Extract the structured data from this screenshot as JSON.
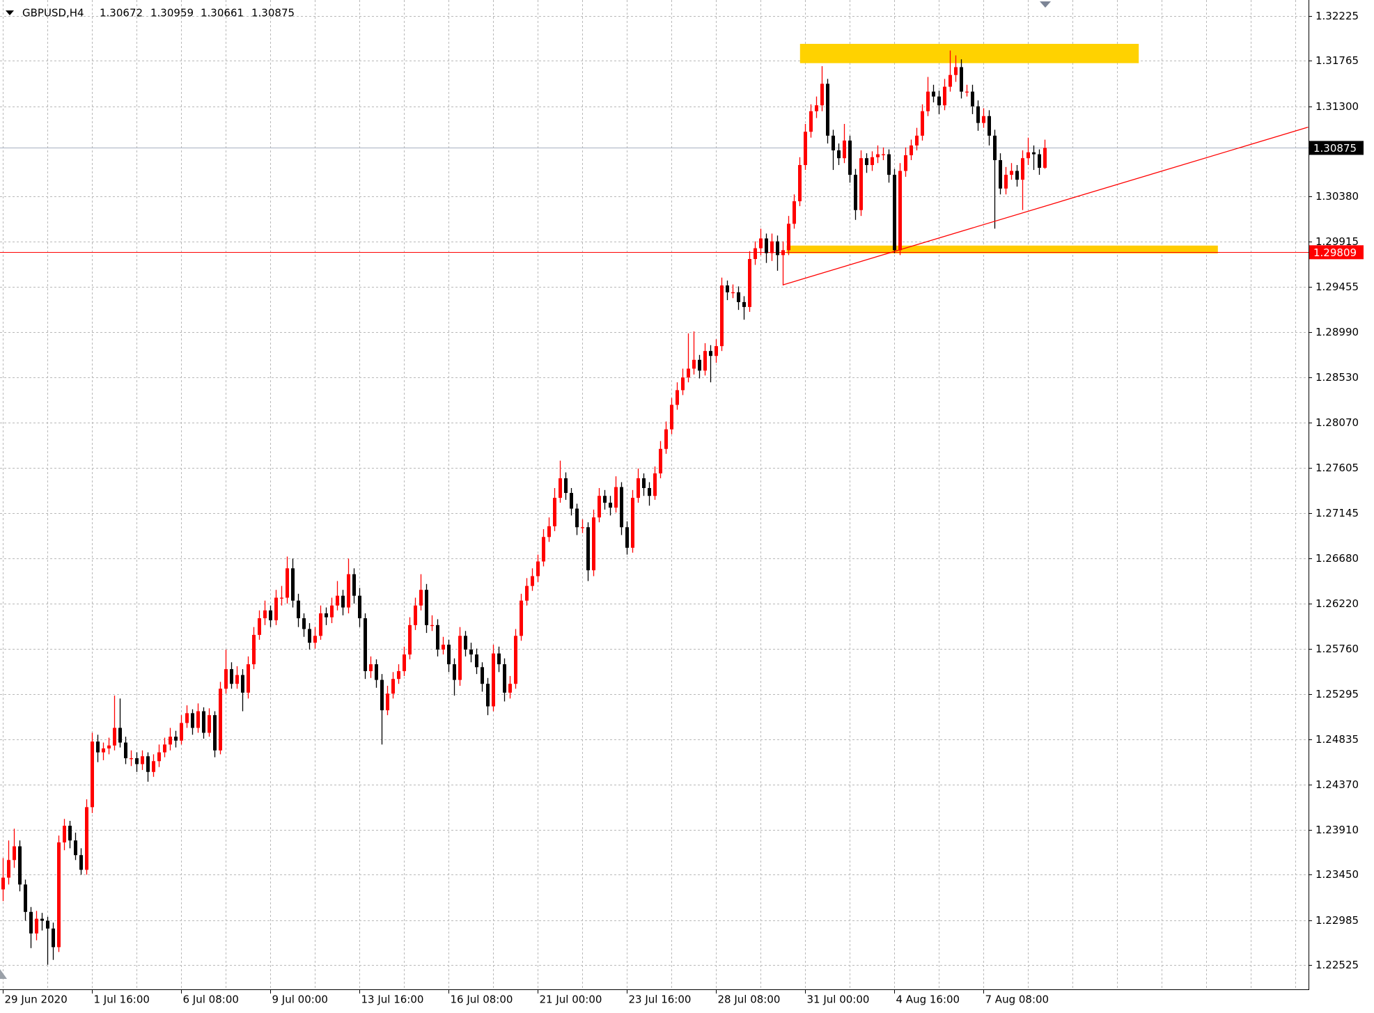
{
  "chart_data": {
    "type": "candlestick",
    "title": "GBPUSD,H4",
    "up_color": "#ff0000",
    "down_color": "#000000",
    "grid": true,
    "ylim": [
      1.22279,
      1.32386
    ],
    "yticks": [
      1.22525,
      1.22985,
      {
        "value": 1.2345,
        "label": "1.23450"
      },
      {
        "value": 1.2391,
        "label": "1.23910"
      },
      {
        "value": 1.2437,
        "label": "1.24370"
      },
      1.24835,
      1.25295,
      {
        "value": 1.2576,
        "label": "1.25760"
      },
      {
        "value": 1.2622,
        "label": "1.26220"
      },
      {
        "value": 1.2668,
        "label": "1.26680"
      },
      1.27145,
      1.27605,
      {
        "value": 1.2807,
        "label": "1.28070"
      },
      {
        "value": 1.2853,
        "label": "1.28530"
      },
      {
        "value": 1.2899,
        "label": "1.28990"
      },
      1.29455,
      1.29915,
      {
        "value": 1.3038,
        "label": "1.30380"
      },
      {
        "value": 1.313,
        "label": "1.31300"
      },
      1.31765,
      1.32225
    ],
    "xticks": [
      0,
      8,
      16,
      24,
      32,
      40,
      48,
      56,
      64,
      72,
      80,
      88,
      96,
      104,
      112,
      120,
      128,
      136,
      144,
      152,
      160,
      168,
      176,
      184,
      192,
      200,
      208,
      216,
      224,
      232
    ],
    "categories": [
      "29 Jun 2020",
      null,
      null,
      null,
      null,
      null,
      null,
      null,
      null,
      null,
      null,
      null,
      null,
      null,
      null,
      null,
      "1 Jul 16:00",
      null,
      null,
      null,
      null,
      null,
      null,
      null,
      null,
      null,
      null,
      null,
      null,
      null,
      null,
      null,
      "6 Jul 08:00",
      null,
      null,
      null,
      null,
      null,
      null,
      null,
      null,
      null,
      null,
      null,
      null,
      null,
      null,
      null,
      "9 Jul 00:00",
      null,
      null,
      null,
      null,
      null,
      null,
      null,
      null,
      null,
      null,
      null,
      null,
      null,
      null,
      null,
      "13 Jul 16:00",
      null,
      null,
      null,
      null,
      null,
      null,
      null,
      null,
      null,
      null,
      null,
      null,
      null,
      null,
      null,
      "16 Jul 08:00",
      null,
      null,
      null,
      null,
      null,
      null,
      null,
      null,
      null,
      null,
      null,
      null,
      null,
      null,
      null,
      "21 Jul 00:00",
      null,
      null,
      null,
      null,
      null,
      null,
      null,
      null,
      null,
      null,
      null,
      null,
      null,
      null,
      null,
      "23 Jul 16:00",
      null,
      null,
      null,
      null,
      null,
      null,
      null,
      null,
      null,
      null,
      null,
      null,
      null,
      null,
      null,
      "28 Jul 08:00",
      null,
      null,
      null,
      null,
      null,
      null,
      null,
      null,
      null,
      null,
      null,
      null,
      null,
      null,
      null,
      "31 Jul 00:00",
      null,
      null,
      null,
      null,
      null,
      null,
      null,
      null,
      null,
      null,
      null,
      null,
      null,
      null,
      null,
      "4 Aug 16:00",
      null,
      null,
      null,
      null,
      null,
      null,
      null,
      null,
      null,
      null,
      null,
      null,
      null,
      null,
      null,
      "7 Aug 08:00",
      null,
      null,
      null,
      null,
      null,
      null,
      null,
      null,
      null,
      null,
      null
    ],
    "candles": [
      [
        1.233,
        1.2362,
        1.2318,
        1.2342
      ],
      [
        1.2342,
        1.238,
        1.2335,
        1.236
      ],
      [
        1.236,
        1.2392,
        1.2352,
        1.2374
      ],
      [
        1.2374,
        1.238,
        1.2328,
        1.2335
      ],
      [
        1.2335,
        1.234,
        1.2298,
        1.2307
      ],
      [
        1.2307,
        1.2312,
        1.227,
        1.2285
      ],
      [
        1.2285,
        1.2308,
        1.2278,
        1.23
      ],
      [
        1.23,
        1.2306,
        1.2288,
        1.2298
      ],
      [
        1.2298,
        1.2302,
        1.2253,
        1.229
      ],
      [
        1.229,
        1.2296,
        1.2258,
        1.2271
      ],
      [
        1.2271,
        1.2385,
        1.2266,
        1.2378
      ],
      [
        1.2378,
        1.2402,
        1.237,
        1.2395
      ],
      [
        1.2395,
        1.24,
        1.2372,
        1.238
      ],
      [
        1.238,
        1.2388,
        1.236,
        1.2365
      ],
      [
        1.2365,
        1.2372,
        1.2345,
        1.235
      ],
      [
        1.235,
        1.2422,
        1.2345,
        1.2414
      ],
      [
        1.2414,
        1.249,
        1.2408,
        1.2481
      ],
      [
        1.2481,
        1.2488,
        1.246,
        1.247
      ],
      [
        1.247,
        1.248,
        1.2462,
        1.2474
      ],
      [
        1.2474,
        1.2485,
        1.2468,
        1.2477
      ],
      [
        1.2477,
        1.2528,
        1.2472,
        1.2495
      ],
      [
        1.2495,
        1.2525,
        1.2475,
        1.248
      ],
      [
        1.248,
        1.2486,
        1.2458,
        1.2464
      ],
      [
        1.2464,
        1.2472,
        1.2456,
        1.2464
      ],
      [
        1.2464,
        1.247,
        1.245,
        1.2458
      ],
      [
        1.2458,
        1.2472,
        1.2452,
        1.2466
      ],
      [
        1.2466,
        1.247,
        1.244,
        1.245
      ],
      [
        1.245,
        1.2468,
        1.2445,
        1.2461
      ],
      [
        1.2461,
        1.2478,
        1.2455,
        1.247
      ],
      [
        1.247,
        1.2485,
        1.2465,
        1.2478
      ],
      [
        1.2478,
        1.2495,
        1.2472,
        1.2486
      ],
      [
        1.2486,
        1.2492,
        1.2475,
        1.2482
      ],
      [
        1.2482,
        1.2508,
        1.2478,
        1.25
      ],
      [
        1.25,
        1.2518,
        1.2495,
        1.251
      ],
      [
        1.251,
        1.2514,
        1.2488,
        1.2495
      ],
      [
        1.2495,
        1.252,
        1.249,
        1.2512
      ],
      [
        1.2512,
        1.2516,
        1.2484,
        1.249
      ],
      [
        1.249,
        1.2515,
        1.2486,
        1.2508
      ],
      [
        1.2508,
        1.2512,
        1.2465,
        1.2472
      ],
      [
        1.2472,
        1.2542,
        1.2468,
        1.2535
      ],
      [
        1.2535,
        1.2575,
        1.253,
        1.2555
      ],
      [
        1.2555,
        1.2562,
        1.2535,
        1.254
      ],
      [
        1.254,
        1.2558,
        1.2535,
        1.2549
      ],
      [
        1.2549,
        1.2555,
        1.2512,
        1.2531
      ],
      [
        1.2531,
        1.2568,
        1.2525,
        1.256
      ],
      [
        1.256,
        1.2598,
        1.2555,
        1.259
      ],
      [
        1.259,
        1.2615,
        1.2585,
        1.2607
      ],
      [
        1.2607,
        1.2625,
        1.26,
        1.2615
      ],
      [
        1.2615,
        1.262,
        1.2598,
        1.2605
      ],
      [
        1.2605,
        1.2636,
        1.26,
        1.2628
      ],
      [
        1.2628,
        1.264,
        1.262,
        1.2628
      ],
      [
        1.2628,
        1.267,
        1.2622,
        1.2658
      ],
      [
        1.2658,
        1.2668,
        1.2618,
        1.2625
      ],
      [
        1.2625,
        1.2632,
        1.2598,
        1.2607
      ],
      [
        1.2607,
        1.2612,
        1.2588,
        1.2596
      ],
      [
        1.2596,
        1.2602,
        1.2575,
        1.2582
      ],
      [
        1.2582,
        1.2598,
        1.2576,
        1.2589
      ],
      [
        1.2589,
        1.262,
        1.2585,
        1.2612
      ],
      [
        1.2612,
        1.2618,
        1.26,
        1.2608
      ],
      [
        1.2608,
        1.2628,
        1.2602,
        1.262
      ],
      [
        1.262,
        1.2645,
        1.2615,
        1.263
      ],
      [
        1.263,
        1.2636,
        1.261,
        1.2618
      ],
      [
        1.2618,
        1.2668,
        1.2612,
        1.2652
      ],
      [
        1.2652,
        1.2658,
        1.2622,
        1.263
      ],
      [
        1.263,
        1.2638,
        1.2598,
        1.2607
      ],
      [
        1.2607,
        1.2612,
        1.2545,
        1.2553
      ],
      [
        1.2553,
        1.2568,
        1.2546,
        1.256
      ],
      [
        1.256,
        1.2565,
        1.2536,
        1.2544
      ],
      [
        1.2544,
        1.255,
        1.2478,
        1.2513
      ],
      [
        1.2513,
        1.2538,
        1.2508,
        1.253
      ],
      [
        1.253,
        1.2552,
        1.2525,
        1.2545
      ],
      [
        1.2545,
        1.256,
        1.254,
        1.2553
      ],
      [
        1.2553,
        1.2578,
        1.2548,
        1.257
      ],
      [
        1.257,
        1.2608,
        1.2565,
        1.26
      ],
      [
        1.26,
        1.2628,
        1.2595,
        1.262
      ],
      [
        1.262,
        1.2652,
        1.2615,
        1.2636
      ],
      [
        1.2636,
        1.2642,
        1.2592,
        1.26
      ],
      [
        1.26,
        1.261,
        1.2594,
        1.26
      ],
      [
        1.26,
        1.2606,
        1.2568,
        1.2575
      ],
      [
        1.2575,
        1.2588,
        1.257,
        1.258
      ],
      [
        1.258,
        1.2585,
        1.2552,
        1.256
      ],
      [
        1.256,
        1.2566,
        1.2528,
        1.2544
      ],
      [
        1.2544,
        1.2598,
        1.2538,
        1.2589
      ],
      [
        1.2589,
        1.2594,
        1.2568,
        1.2575
      ],
      [
        1.2575,
        1.2582,
        1.2562,
        1.257
      ],
      [
        1.257,
        1.2576,
        1.255,
        1.2557
      ],
      [
        1.2557,
        1.2562,
        1.2532,
        1.254
      ],
      [
        1.254,
        1.2546,
        1.2508,
        1.2517
      ],
      [
        1.2517,
        1.258,
        1.2512,
        1.2571
      ],
      [
        1.2571,
        1.2578,
        1.2552,
        1.256
      ],
      [
        1.256,
        1.2566,
        1.2522,
        1.2531
      ],
      [
        1.2531,
        1.2548,
        1.2525,
        1.254
      ],
      [
        1.254,
        1.2596,
        1.2535,
        1.2589
      ],
      [
        1.2589,
        1.2632,
        1.2584,
        1.2625
      ],
      [
        1.2625,
        1.2648,
        1.262,
        1.264
      ],
      [
        1.264,
        1.2658,
        1.2635,
        1.265
      ],
      [
        1.265,
        1.2672,
        1.2644,
        1.2665
      ],
      [
        1.2665,
        1.2698,
        1.266,
        1.269
      ],
      [
        1.269,
        1.271,
        1.2685,
        1.2701
      ],
      [
        1.2701,
        1.274,
        1.2696,
        1.273
      ],
      [
        1.273,
        1.2768,
        1.2725,
        1.275
      ],
      [
        1.275,
        1.2756,
        1.2728,
        1.2735
      ],
      [
        1.2735,
        1.274,
        1.2712,
        1.2719
      ],
      [
        1.2719,
        1.2724,
        1.2692,
        1.27
      ],
      [
        1.27,
        1.2708,
        1.2694,
        1.27
      ],
      [
        1.27,
        1.2705,
        1.2645,
        1.2656
      ],
      [
        1.2656,
        1.2718,
        1.265,
        1.271
      ],
      [
        1.271,
        1.274,
        1.2705,
        1.2732
      ],
      [
        1.2732,
        1.2738,
        1.2718,
        1.2725
      ],
      [
        1.2725,
        1.2732,
        1.2712,
        1.272
      ],
      [
        1.272,
        1.2752,
        1.2715,
        1.2741
      ],
      [
        1.2741,
        1.2746,
        1.2692,
        1.27
      ],
      [
        1.27,
        1.2706,
        1.2672,
        1.2679
      ],
      [
        1.2679,
        1.2738,
        1.2674,
        1.273
      ],
      [
        1.273,
        1.276,
        1.2725,
        1.275
      ],
      [
        1.275,
        1.2755,
        1.2732,
        1.274
      ],
      [
        1.274,
        1.2746,
        1.2722,
        1.2732
      ],
      [
        1.2732,
        1.2762,
        1.2728,
        1.2755
      ],
      [
        1.2755,
        1.2788,
        1.275,
        1.278
      ],
      [
        1.278,
        1.2808,
        1.2775,
        1.28
      ],
      [
        1.28,
        1.2832,
        1.2795,
        1.2825
      ],
      [
        1.2825,
        1.2848,
        1.282,
        1.284
      ],
      [
        1.284,
        1.2862,
        1.2835,
        1.2853
      ],
      [
        1.2853,
        1.2898,
        1.2848,
        1.2862
      ],
      [
        1.2862,
        1.29,
        1.2856,
        1.2871
      ],
      [
        1.2871,
        1.2876,
        1.2852,
        1.286
      ],
      [
        1.286,
        1.2888,
        1.2855,
        1.288
      ],
      [
        1.288,
        1.2886,
        1.2848,
        1.2875
      ],
      [
        1.2875,
        1.2892,
        1.2868,
        1.2885
      ],
      [
        1.2885,
        1.2955,
        1.288,
        1.2947
      ],
      [
        1.2947,
        1.2952,
        1.2932,
        1.294
      ],
      [
        1.294,
        1.2948,
        1.2934,
        1.294
      ],
      [
        1.294,
        1.2946,
        1.2922,
        1.293
      ],
      [
        1.293,
        1.2936,
        1.2912,
        1.2925
      ],
      [
        1.2925,
        1.2982,
        1.292,
        1.2974
      ],
      [
        1.2974,
        1.2992,
        1.2968,
        1.2985
      ],
      [
        1.2985,
        1.3005,
        1.2978,
        1.2995
      ],
      [
        1.2995,
        1.3,
        1.297,
        1.298
      ],
      [
        1.298,
        1.3,
        1.2972,
        1.2992
      ],
      [
        1.2992,
        1.2998,
        1.2962,
        1.2978
      ],
      [
        1.2978,
        1.2992,
        1.2947,
        1.2983
      ],
      [
        1.2983,
        1.3018,
        1.2978,
        1.301
      ],
      [
        1.301,
        1.304,
        1.3005,
        1.3033
      ],
      [
        1.3033,
        1.3078,
        1.3028,
        1.307
      ],
      [
        1.307,
        1.3112,
        1.3065,
        1.3104
      ],
      [
        1.3104,
        1.3132,
        1.3098,
        1.3125
      ],
      [
        1.3125,
        1.314,
        1.3118,
        1.3131
      ],
      [
        1.3131,
        1.3171,
        1.3125,
        1.3153
      ],
      [
        1.3153,
        1.3158,
        1.3092,
        1.31
      ],
      [
        1.31,
        1.3106,
        1.3065,
        1.3085
      ],
      [
        1.3085,
        1.3092,
        1.307,
        1.3077
      ],
      [
        1.3077,
        1.3112,
        1.3072,
        1.3095
      ],
      [
        1.3095,
        1.31,
        1.3052,
        1.306
      ],
      [
        1.306,
        1.3066,
        1.3014,
        1.3024
      ],
      [
        1.3024,
        1.3085,
        1.3018,
        1.3077
      ],
      [
        1.3077,
        1.3082,
        1.3062,
        1.307
      ],
      [
        1.307,
        1.3084,
        1.3064,
        1.3078
      ],
      [
        1.3078,
        1.309,
        1.3072,
        1.3081
      ],
      [
        1.3081,
        1.3088,
        1.3075,
        1.3081
      ],
      [
        1.3081,
        1.3086,
        1.3052,
        1.306
      ],
      [
        1.306,
        1.3066,
        1.298,
        1.2983
      ],
      [
        1.2983,
        1.3072,
        1.2978,
        1.3064
      ],
      [
        1.3064,
        1.3088,
        1.3058,
        1.308
      ],
      [
        1.308,
        1.3096,
        1.3075,
        1.309
      ],
      [
        1.309,
        1.3108,
        1.3085,
        1.31
      ],
      [
        1.31,
        1.3132,
        1.3095,
        1.3125
      ],
      [
        1.3125,
        1.316,
        1.312,
        1.3145
      ],
      [
        1.3145,
        1.3152,
        1.3134,
        1.314
      ],
      [
        1.314,
        1.3146,
        1.3122,
        1.3131
      ],
      [
        1.3131,
        1.3158,
        1.3126,
        1.315
      ],
      [
        1.315,
        1.3187,
        1.3145,
        1.3162
      ],
      [
        1.3162,
        1.3182,
        1.3155,
        1.317
      ],
      [
        1.317,
        1.3178,
        1.3138,
        1.3145
      ],
      [
        1.3145,
        1.3152,
        1.314,
        1.3145
      ],
      [
        1.3145,
        1.3152,
        1.3122,
        1.313
      ],
      [
        1.313,
        1.3136,
        1.3105,
        1.3113
      ],
      [
        1.3113,
        1.3128,
        1.3108,
        1.312
      ],
      [
        1.312,
        1.3126,
        1.309,
        1.31
      ],
      [
        1.31,
        1.3106,
        1.3005,
        1.3075
      ],
      [
        1.3075,
        1.3082,
        1.304,
        1.3046
      ],
      [
        1.3046,
        1.3068,
        1.304,
        1.306
      ],
      [
        1.306,
        1.3072,
        1.3055,
        1.3064
      ],
      [
        1.3064,
        1.307,
        1.3048,
        1.3055
      ],
      [
        1.3055,
        1.3085,
        1.3024,
        1.3077
      ],
      [
        1.3077,
        1.3098,
        1.307,
        1.3083
      ],
      [
        1.3083,
        1.309,
        1.3065,
        1.3081
      ],
      [
        1.3081,
        1.3086,
        1.306,
        1.30672
      ],
      [
        1.30672,
        1.30959,
        1.30661,
        1.30875
      ]
    ],
    "hline": {
      "value": 1.29809,
      "color": "#ff0000"
    },
    "price_line_color": "#a7b0c0",
    "trendline": {
      "x": [
        140,
        234.3
      ],
      "y": [
        1.29475,
        1.31087
      ],
      "color": "#ff0000"
    },
    "zones": [
      {
        "x": [
          143.1,
          203.9
        ],
        "y": [
          1.31938,
          1.31741
        ],
        "color": "#ffd200"
      },
      {
        "x": [
          140.7,
          218.1
        ],
        "y": [
          1.29877,
          1.29797
        ],
        "color": "#ffcc00"
      }
    ]
  }
}
